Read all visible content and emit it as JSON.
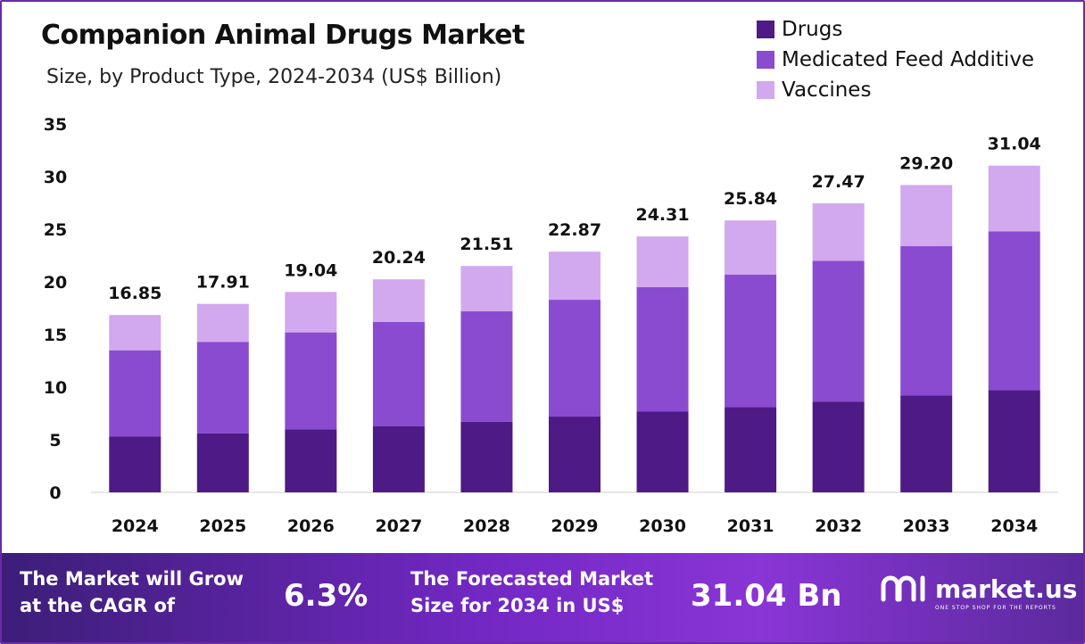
{
  "header": {
    "title": "Companion Animal Drugs Market",
    "subtitle": "Size, by Product Type, 2024-2034 (US$ Billion)"
  },
  "legend": [
    {
      "label": "Drugs",
      "color": "#4e1a86"
    },
    {
      "label": "Medicated Feed Additive",
      "color": "#8a4bd0"
    },
    {
      "label": "Vaccines",
      "color": "#d2a8ee"
    }
  ],
  "chart_data": {
    "type": "bar",
    "stacked": true,
    "categories": [
      "2024",
      "2025",
      "2026",
      "2027",
      "2028",
      "2029",
      "2030",
      "2031",
      "2032",
      "2033",
      "2034"
    ],
    "series": [
      {
        "name": "Drugs",
        "color": "#4e1a86",
        "values": [
          5.3,
          5.6,
          6.0,
          6.3,
          6.7,
          7.2,
          7.7,
          8.1,
          8.6,
          9.2,
          9.7
        ]
      },
      {
        "name": "Medicated Feed Additive",
        "color": "#8a4bd0",
        "values": [
          8.2,
          8.7,
          9.2,
          9.9,
          10.5,
          11.1,
          11.8,
          12.6,
          13.4,
          14.2,
          15.1
        ]
      },
      {
        "name": "Vaccines",
        "color": "#d2a8ee",
        "values": [
          3.35,
          3.61,
          3.84,
          4.04,
          4.31,
          4.57,
          4.81,
          5.14,
          5.47,
          5.8,
          6.24
        ]
      }
    ],
    "totals": [
      "16.85",
      "17.91",
      "19.04",
      "20.24",
      "21.51",
      "22.87",
      "24.31",
      "25.84",
      "27.47",
      "29.20",
      "31.04"
    ],
    "yticks": [
      "0",
      "5",
      "10",
      "15",
      "20",
      "25",
      "30",
      "35"
    ],
    "ylim": [
      0,
      35
    ],
    "grid": false
  },
  "footer": {
    "cagr_line1": "The Market will Grow",
    "cagr_line2": "at the CAGR of",
    "cagr_value": "6.3%",
    "forecast_line1": "The Forecasted Market",
    "forecast_line2": "Size for 2034 in US$",
    "forecast_value": "31.04 Bn",
    "brand": "market.us",
    "tagline": "ONE STOP SHOP FOR THE REPORTS"
  }
}
